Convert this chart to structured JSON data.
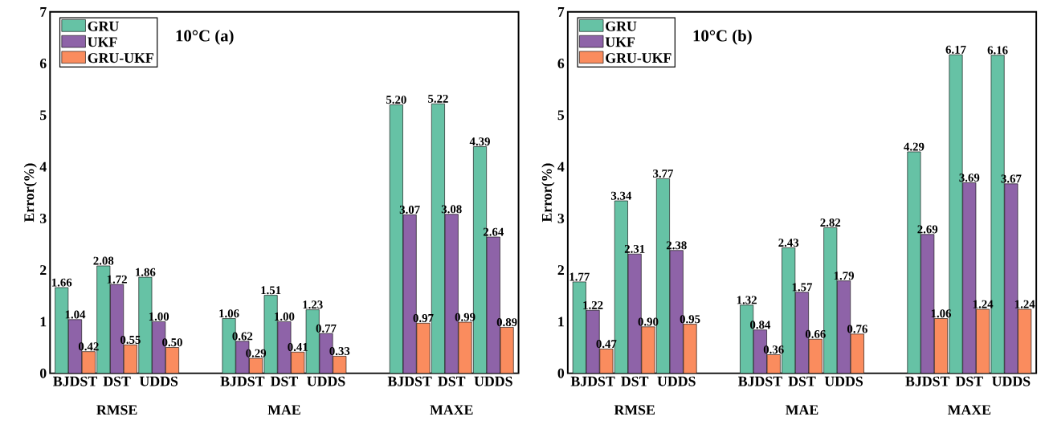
{
  "chart_data": [
    {
      "type": "bar",
      "ylabel": "Error(%)",
      "categories": [
        "BJDST",
        "DST",
        "UDDS",
        null,
        "BJDST",
        "DST",
        "UDDS",
        null,
        "BJDST",
        "DST",
        "UDDS"
      ],
      "ylim": [
        0,
        7
      ],
      "yticks": [
        0,
        1,
        2,
        3,
        4,
        5,
        6,
        7
      ],
      "legend": "top left",
      "annotations": [
        "10°C (a)",
        "RMSE",
        "MAE",
        "MAXE"
      ],
      "series": [
        {
          "name": "GRU",
          "color": "#66c2a5",
          "values": [
            1.66,
            2.08,
            1.86,
            null,
            1.06,
            1.51,
            1.23,
            null,
            5.2,
            5.22,
            4.39
          ],
          "value_labels": [
            "1.66",
            "2.08",
            "1.86",
            null,
            "1.06",
            "1.51",
            "1.23",
            null,
            "5.20",
            "5.22",
            "4.39"
          ]
        },
        {
          "name": "UKF",
          "color": "#8e63a8",
          "values": [
            1.04,
            1.72,
            1.0,
            null,
            0.62,
            1.0,
            0.77,
            null,
            3.07,
            3.08,
            2.64
          ],
          "value_labels": [
            "1.04",
            "1.72",
            "1.00",
            null,
            "0.62",
            "1.00",
            "0.77",
            null,
            "3.07",
            "3.08",
            "2.64"
          ]
        },
        {
          "name": "GRU-UKF",
          "color": "#fa8c5e",
          "values": [
            0.42,
            0.55,
            0.5,
            null,
            0.29,
            0.41,
            0.33,
            null,
            0.97,
            0.99,
            0.89
          ],
          "value_labels": [
            "0.42",
            "0.55",
            "0.50",
            null,
            "0.29",
            "0.41",
            "0.33",
            null,
            "0.97",
            "0.99",
            "0.89"
          ]
        }
      ]
    },
    {
      "type": "bar",
      "ylabel": "Error(%)",
      "categories": [
        "BJDST",
        "DST",
        "UDDS",
        null,
        "BJDST",
        "DST",
        "UDDS",
        null,
        "BJDST",
        "DST",
        "UDDS"
      ],
      "ylim": [
        0,
        7
      ],
      "yticks": [
        0,
        1,
        2,
        3,
        4,
        5,
        6,
        7
      ],
      "legend": "top left",
      "annotations": [
        "10°C (b)",
        "RMSE",
        "MAE",
        "MAXE"
      ],
      "series": [
        {
          "name": "GRU",
          "color": "#66c2a5",
          "values": [
            1.77,
            3.34,
            3.77,
            null,
            1.32,
            2.43,
            2.82,
            null,
            4.29,
            6.17,
            6.16
          ],
          "value_labels": [
            "1.77",
            "3.34",
            "3.77",
            null,
            "1.32",
            "2.43",
            "2.82",
            null,
            "4.29",
            "6.17",
            "6.16"
          ]
        },
        {
          "name": "UKF",
          "color": "#8e63a8",
          "values": [
            1.22,
            2.31,
            2.38,
            null,
            0.84,
            1.57,
            1.79,
            null,
            2.69,
            3.69,
            3.67
          ],
          "value_labels": [
            "1.22",
            "2.31",
            "2.38",
            null,
            "0.84",
            "1.57",
            "1.79",
            null,
            "2.69",
            "3.69",
            "3.67"
          ]
        },
        {
          "name": "GRU-UKF",
          "color": "#fa8c5e",
          "values": [
            0.47,
            0.9,
            0.95,
            null,
            0.36,
            0.66,
            0.76,
            null,
            1.06,
            1.24,
            1.24
          ],
          "value_labels": [
            "0.47",
            "0.90",
            "0.95",
            null,
            "0.36",
            "0.66",
            "0.76",
            null,
            "1.06",
            "1.24",
            "1.24"
          ]
        }
      ]
    }
  ]
}
